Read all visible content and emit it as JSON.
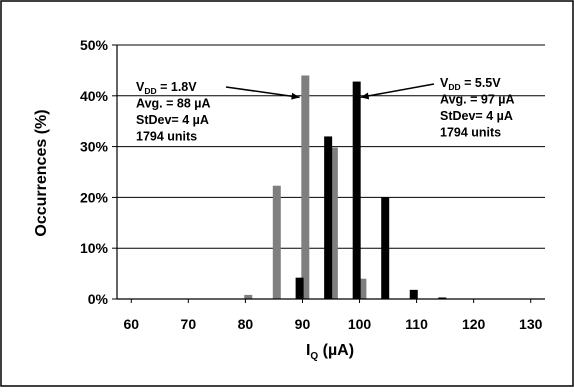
{
  "chart_data": {
    "type": "bar",
    "xlabel": "I",
    "xlabel_sub": "Q",
    "xlabel_unit": " (µA)",
    "ylabel": "Occurrences (%)",
    "xlim": [
      57.5,
      132.5
    ],
    "ylim": [
      0,
      50
    ],
    "xticks": [
      "60",
      "70",
      "80",
      "90",
      "100",
      "110",
      "120",
      "130"
    ],
    "yticks": [
      "0%",
      "10%",
      "20%",
      "30%",
      "40%",
      "50%"
    ],
    "grid": "horizontal",
    "series": [
      {
        "name": "VDD = 1.8V",
        "color": "#7f7f7f",
        "points": [
          {
            "x": 80.5,
            "y": 0.8
          },
          {
            "x": 85.5,
            "y": 22.3
          },
          {
            "x": 90.5,
            "y": 44
          },
          {
            "x": 95.5,
            "y": 29.8
          },
          {
            "x": 100.5,
            "y": 4
          },
          {
            "x": 105.5,
            "y": 0
          }
        ]
      },
      {
        "name": "VDD = 5.5V",
        "color": "#000000",
        "points": [
          {
            "x": 89.5,
            "y": 4.2
          },
          {
            "x": 94.5,
            "y": 32
          },
          {
            "x": 99.5,
            "y": 42.8
          },
          {
            "x": 104.5,
            "y": 20
          },
          {
            "x": 109.5,
            "y": 1.8
          },
          {
            "x": 114.5,
            "y": 0.3
          }
        ]
      }
    ],
    "annotations": [
      {
        "series": "VDD = 1.8V",
        "lines": [
          {
            "main": "V",
            "sub": "DD",
            "rest": " = 1.8V"
          },
          {
            "main": "Avg. = 88 µA"
          },
          {
            "main": "StDev= 4 µA"
          },
          {
            "main": "1794 units"
          }
        ],
        "arrow_to": {
          "x": 89.5,
          "y": 39.7
        }
      },
      {
        "series": "VDD = 5.5V",
        "lines": [
          {
            "main": "V",
            "sub": "DD",
            "rest": " = 5.5V"
          },
          {
            "main": "Avg. = 97 µA"
          },
          {
            "main": "StDev= 4 µA"
          },
          {
            "main": "1794 units"
          }
        ],
        "arrow_to": {
          "x": 100.2,
          "y": 39.7
        }
      }
    ]
  }
}
